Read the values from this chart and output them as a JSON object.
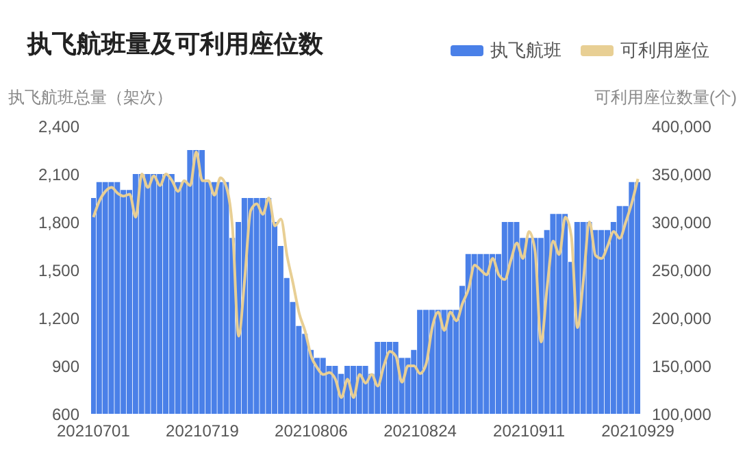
{
  "chart_data": {
    "type": "bar",
    "title": "执飞航班量及可利用座位数",
    "ylabel": "执飞航班总量（架次）",
    "y2label": "可利用座位数量(个)",
    "categories": [
      "20210701",
      null,
      null,
      null,
      null,
      null,
      null,
      null,
      null,
      null,
      null,
      null,
      null,
      null,
      null,
      null,
      null,
      null,
      "20210719",
      null,
      null,
      null,
      null,
      null,
      null,
      null,
      null,
      null,
      null,
      null,
      null,
      null,
      null,
      null,
      null,
      null,
      "20210806",
      null,
      null,
      null,
      null,
      null,
      null,
      null,
      null,
      null,
      null,
      null,
      null,
      null,
      null,
      null,
      null,
      null,
      "20210824",
      null,
      null,
      null,
      null,
      null,
      null,
      null,
      null,
      null,
      null,
      null,
      null,
      null,
      null,
      null,
      null,
      null,
      "20210911",
      null,
      null,
      null,
      null,
      null,
      null,
      null,
      null,
      null,
      null,
      null,
      null,
      null,
      null,
      null,
      null,
      null,
      "20210929"
    ],
    "series": [
      {
        "name": "执飞航班",
        "color": "#4a80e8",
        "values": [
          1950,
          2050,
          2050,
          2050,
          2050,
          2000,
          2000,
          2100,
          2100,
          2100,
          2100,
          2100,
          2100,
          2100,
          2050,
          2050,
          2250,
          2250,
          2250,
          2050,
          2050,
          2050,
          2050,
          1700,
          1800,
          1950,
          1950,
          1950,
          1950,
          1950,
          1800,
          1650,
          1450,
          1300,
          1150,
          1100,
          1000,
          950,
          950,
          900,
          900,
          850,
          900,
          900,
          900,
          900,
          850,
          1050,
          1050,
          1050,
          1050,
          950,
          950,
          1000,
          1250,
          1250,
          1250,
          1250,
          1250,
          1250,
          1250,
          1400,
          1600,
          1600,
          1600,
          1600,
          1600,
          1600,
          1800,
          1800,
          1800,
          1700,
          1700,
          1700,
          1700,
          1750,
          1850,
          1850,
          1850,
          1550,
          1800,
          1800,
          1800,
          1750,
          1750,
          1750,
          1800,
          1900,
          1900,
          2050,
          2050
        ]
      },
      {
        "name": "可利用座位",
        "type": "line",
        "axis": "y2",
        "color": "#e8cf94",
        "values": [
          305000,
          322000,
          332000,
          336000,
          330000,
          327000,
          329000,
          305000,
          350000,
          336000,
          348000,
          338000,
          350000,
          343000,
          332000,
          343000,
          338000,
          373000,
          343000,
          343000,
          328000,
          346000,
          336000,
          293000,
          181000,
          240000,
          312000,
          319000,
          308000,
          325000,
          296000,
          303000,
          265000,
          236000,
          205000,
          186000,
          160000,
          148000,
          141000,
          143000,
          136000,
          117000,
          136000,
          117000,
          141000,
          132000,
          141000,
          129000,
          150000,
          165000,
          160000,
          133000,
          150000,
          150000,
          142000,
          152000,
          190000,
          206000,
          187000,
          206000,
          197000,
          215000,
          230000,
          255000,
          250000,
          245000,
          262000,
          245000,
          240000,
          260000,
          278000,
          262000,
          290000,
          270000,
          175000,
          232000,
          280000,
          266000,
          305000,
          285000,
          190000,
          240000,
          300000,
          265000,
          262000,
          275000,
          290000,
          283000,
          300000,
          320000,
          345000
        ]
      }
    ],
    "ylim": [
      600,
      2400
    ],
    "yticks": [
      600,
      900,
      {
        "value": 1200,
        "label": "1,200"
      },
      {
        "value": 1500,
        "label": "1,500"
      },
      {
        "value": 1800,
        "label": "1,800"
      },
      {
        "value": 2100,
        "label": "2,100"
      },
      {
        "value": 2400,
        "label": "2,400"
      }
    ],
    "y2lim": [
      100000,
      400000
    ],
    "y2ticks": [
      {
        "value": 100000,
        "label": "100,000"
      },
      {
        "value": 150000,
        "label": "150,000"
      },
      {
        "value": 200000,
        "label": "200,000"
      },
      {
        "value": 250000,
        "label": "250,000"
      },
      {
        "value": 300000,
        "label": "300,000"
      },
      {
        "value": 350000,
        "label": "350,000"
      },
      {
        "value": 400000,
        "label": "400,000"
      }
    ],
    "legend": "top right"
  }
}
